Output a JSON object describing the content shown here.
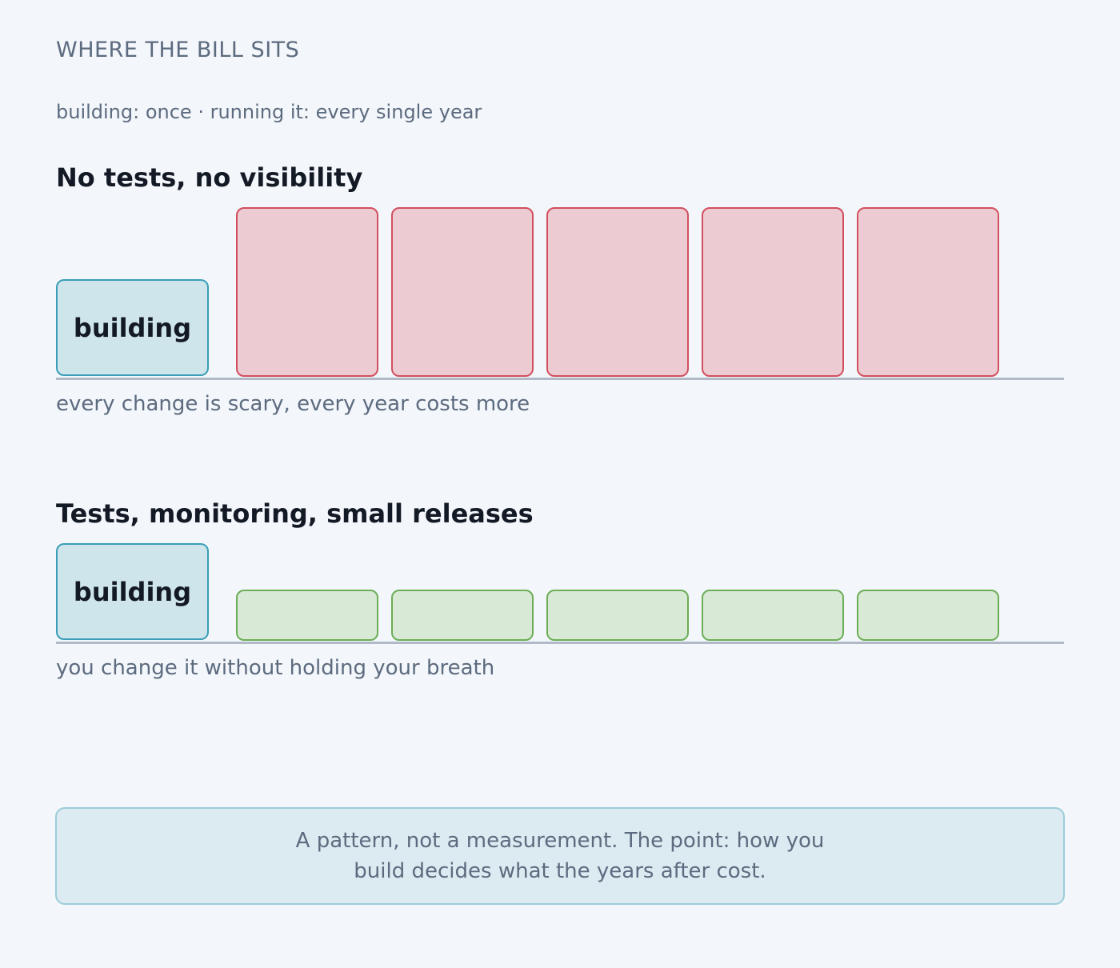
{
  "header": {
    "eyebrow": "WHERE THE BILL SITS",
    "subtitle": "building: once · running it: every single year"
  },
  "scenarios": [
    {
      "title": "No tests, no visibility",
      "build_label": "building",
      "caption": "every change is scary, every year costs more",
      "year_block_color": "#edcbd3",
      "year_block_border": "#d2505e",
      "year_blocks": 5
    },
    {
      "title": "Tests, monitoring, small releases",
      "build_label": "building",
      "caption": "you change it without holding your breath",
      "year_block_color": "#d8e9d6",
      "year_block_border": "#6cae56",
      "year_blocks": 5
    }
  ],
  "note": {
    "text": "A pattern, not a measurement. The point: how you build decides what the years after cost."
  }
}
